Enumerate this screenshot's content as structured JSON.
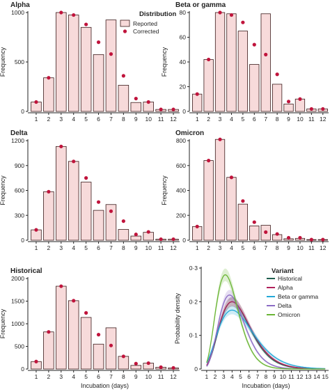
{
  "colors": {
    "bar_fill": "#f7dada",
    "bar_stroke": "#3a1a1a",
    "dot": "#c0143c",
    "axis": "#222222"
  },
  "legend_distribution": {
    "title": "Distribution",
    "reported": "Reported",
    "corrected": "Corrected"
  },
  "legend_variant": {
    "title": "Variant"
  },
  "chart_data": [
    {
      "type": "bar",
      "title": "Alpha",
      "ylabel": "Frequency",
      "xlabel": "",
      "categories": [
        1,
        2,
        3,
        4,
        5,
        6,
        7,
        8,
        9,
        10,
        11,
        12
      ],
      "ylim": [
        0,
        1000
      ],
      "yticks": [
        0,
        500,
        1000
      ],
      "series": [
        {
          "name": "Reported",
          "values": [
            95,
            340,
            1000,
            975,
            850,
            575,
            925,
            265,
            90,
            95,
            20,
            20
          ]
        },
        {
          "name": "Corrected",
          "values": [
            95,
            340,
            1000,
            975,
            880,
            700,
            580,
            360,
            130,
            95,
            20,
            20
          ]
        }
      ]
    },
    {
      "type": "bar",
      "title": "Beta or gamma",
      "ylabel": "Frequency",
      "xlabel": "",
      "categories": [
        1,
        2,
        3,
        4,
        5,
        6,
        7,
        8,
        9,
        10,
        11,
        12
      ],
      "ylim": [
        0,
        80
      ],
      "yticks": [
        0,
        20,
        40,
        60,
        80
      ],
      "series": [
        {
          "name": "Reported",
          "values": [
            14,
            42,
            80,
            79,
            65,
            38,
            79,
            22,
            6,
            10,
            2,
            2
          ]
        },
        {
          "name": "Corrected",
          "values": [
            14,
            42,
            80,
            78,
            72,
            54,
            46,
            30,
            8,
            10,
            2,
            2
          ]
        }
      ]
    },
    {
      "type": "bar",
      "title": "Delta",
      "ylabel": "Frequency",
      "xlabel": "",
      "categories": [
        1,
        2,
        3,
        4,
        5,
        6,
        7,
        8,
        9,
        10,
        11,
        12
      ],
      "ylim": [
        0,
        1200
      ],
      "yticks": [
        0,
        300,
        600,
        900,
        1200
      ],
      "series": [
        {
          "name": "Reported",
          "values": [
            125,
            585,
            1130,
            950,
            700,
            360,
            430,
            130,
            50,
            95,
            12,
            12
          ]
        },
        {
          "name": "Corrected",
          "values": [
            125,
            585,
            1130,
            950,
            750,
            460,
            350,
            230,
            70,
            100,
            12,
            12
          ]
        }
      ]
    },
    {
      "type": "bar",
      "title": "Omicron",
      "ylabel": "Frequency",
      "xlabel": "",
      "categories": [
        1,
        2,
        3,
        4,
        5,
        6,
        7,
        8,
        9,
        10,
        11,
        12
      ],
      "ylim": [
        0,
        800
      ],
      "yticks": [
        0,
        200,
        400,
        600,
        800
      ],
      "series": [
        {
          "name": "Reported",
          "values": [
            110,
            640,
            810,
            505,
            290,
            115,
            120,
            45,
            12,
            15,
            5,
            5
          ]
        },
        {
          "name": "Corrected",
          "values": [
            110,
            640,
            810,
            505,
            315,
            145,
            65,
            50,
            20,
            20,
            5,
            5
          ]
        }
      ]
    },
    {
      "type": "bar",
      "title": "Historical",
      "ylabel": "Frequency",
      "xlabel": "Incubation (days)",
      "categories": [
        1,
        2,
        3,
        4,
        5,
        6,
        7,
        8,
        9,
        10,
        11,
        12
      ],
      "ylim": [
        0,
        2000
      ],
      "yticks": [
        0,
        500,
        1000,
        1500,
        2000
      ],
      "series": [
        {
          "name": "Reported",
          "values": [
            165,
            820,
            1830,
            1510,
            1140,
            550,
            910,
            280,
            80,
            130,
            40,
            25
          ]
        },
        {
          "name": "Corrected",
          "values": [
            165,
            820,
            1830,
            1510,
            1240,
            760,
            520,
            280,
            120,
            130,
            40,
            25
          ]
        }
      ]
    },
    {
      "type": "line",
      "title": "",
      "ylabel": "Probability density",
      "xlabel": "Incubation (days)",
      "xticks": [
        1,
        2,
        3,
        4,
        5,
        6,
        7,
        8,
        9,
        10,
        11,
        12,
        13,
        14,
        15
      ],
      "ylim": [
        0,
        0.3
      ],
      "yticks": [
        0,
        0.1,
        0.2,
        0.3
      ],
      "ytick_labels": [
        "0",
        "0·1",
        "0·2",
        "0·3"
      ],
      "legend_title": "Variant",
      "series": [
        {
          "name": "Historical",
          "color": "#1f5e4e",
          "shape": 5.8,
          "mode": 4.0,
          "peak": 0.2
        },
        {
          "name": "Alpha",
          "color": "#b0205a",
          "shape": 5.5,
          "mode": 4.0,
          "peak": 0.2
        },
        {
          "name": "Beta or gamma",
          "color": "#22a8d8",
          "shape": 4.6,
          "mode": 4.0,
          "peak": 0.175
        },
        {
          "name": "Delta",
          "color": "#8b6bc4",
          "shape": 6.8,
          "mode": 3.7,
          "peak": 0.22
        },
        {
          "name": "Omicron",
          "color": "#6ab534",
          "shape": 6.6,
          "mode": 3.2,
          "peak": 0.28
        }
      ]
    }
  ]
}
